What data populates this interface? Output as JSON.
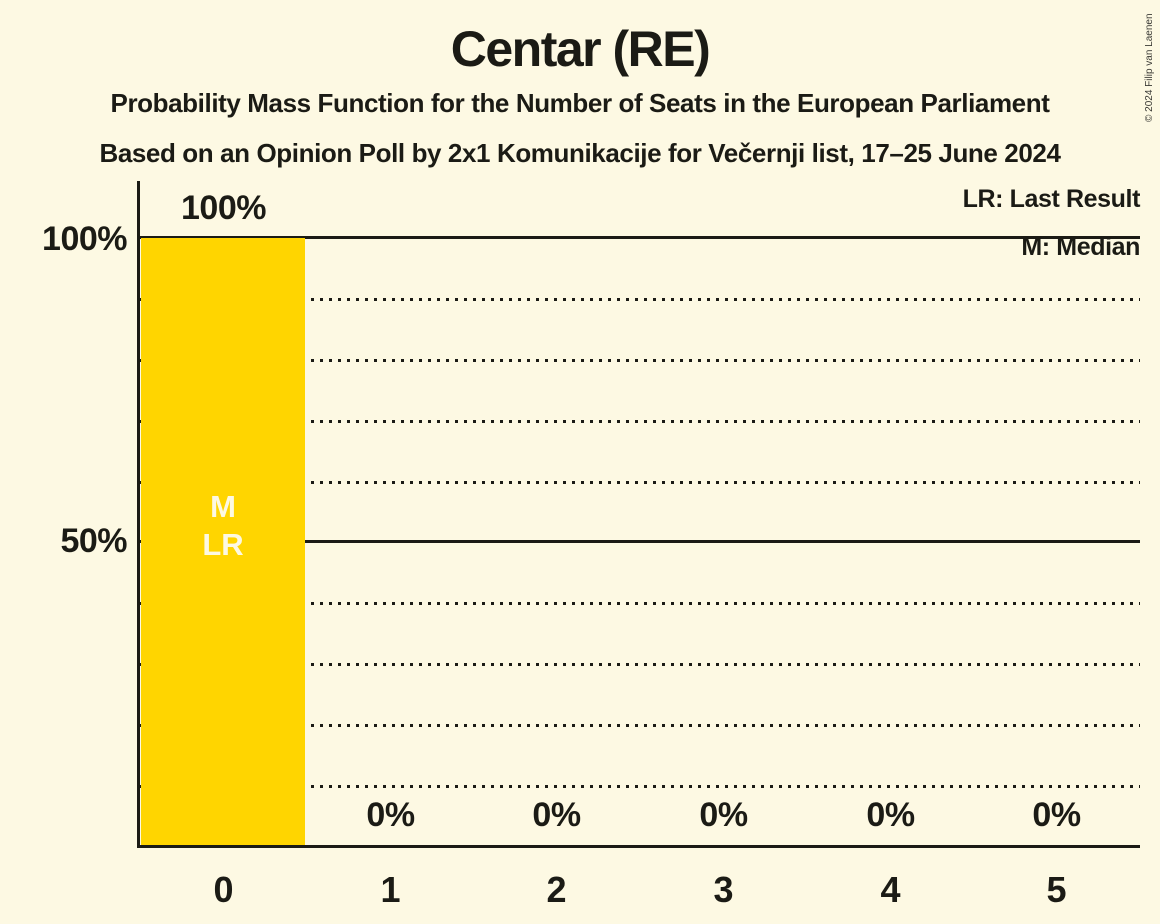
{
  "title": "Centar (RE)",
  "subtitle_line1": "Probability Mass Function for the Number of Seats in the European Parliament",
  "subtitle_line2": "Based on an Opinion Poll by 2x1 Komunikacije for Večernji list, 17–25 June 2024",
  "copyright": "© 2024 Filip van Laenen",
  "legend": {
    "lr": "LR: Last Result",
    "m": "M: Median"
  },
  "bar_annotations": {
    "median": "M",
    "last_result": "LR"
  },
  "y_ticks": {
    "p100": "100%",
    "p50": "50%"
  },
  "colors": {
    "background": "#FDF9E3",
    "bar": "#FFD500",
    "text": "#1B1B15"
  },
  "chart_data": {
    "type": "bar",
    "title": "Centar (RE)",
    "categories": [
      "0",
      "1",
      "2",
      "3",
      "4",
      "5"
    ],
    "values": [
      100,
      0,
      0,
      0,
      0,
      0
    ],
    "value_labels": [
      "100%",
      "0%",
      "0%",
      "0%",
      "0%",
      "0%"
    ],
    "ylim": [
      0,
      100
    ],
    "y_tick_values": [
      100,
      50
    ],
    "y_tick_labels": [
      "100%",
      "50%"
    ],
    "solid_gridlines": [
      100,
      50
    ],
    "dotted_gridlines": [
      90,
      80,
      70,
      60,
      40,
      30,
      20,
      10
    ],
    "grid": "horizontal",
    "legend_position": "top-right",
    "median_seats": 0,
    "last_result_seats": 0,
    "bar_color": "#FFD500"
  }
}
